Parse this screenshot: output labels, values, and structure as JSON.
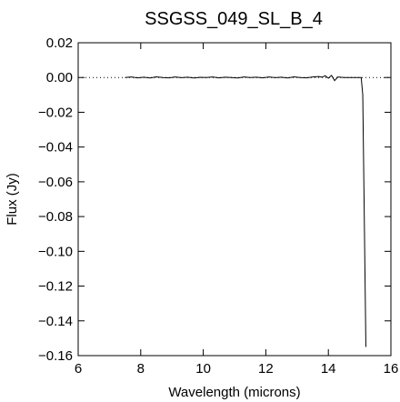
{
  "chart_data": {
    "type": "line",
    "title": "SSGSS_049_SL_B_4",
    "xlabel": "Wavelength (microns)",
    "ylabel": "Flux (Jy)",
    "xlim": [
      6,
      16
    ],
    "ylim": [
      -0.16,
      0.02
    ],
    "xticks": [
      6,
      8,
      10,
      12,
      14,
      16
    ],
    "xtick_labels": [
      "6",
      "8",
      "10",
      "12",
      "14",
      "16"
    ],
    "yticks": [
      0.02,
      0.0,
      -0.02,
      -0.04,
      -0.06,
      -0.08,
      -0.1,
      -0.12,
      -0.14,
      -0.16
    ],
    "ytick_labels": [
      "0.02",
      "0.00",
      "−0.02",
      "−0.04",
      "−0.06",
      "−0.08",
      "−0.10",
      "−0.12",
      "−0.14",
      "−0.16"
    ],
    "grid": false,
    "zero_line": "dotted",
    "series": [
      {
        "x": [
          7.5,
          7.7,
          7.9,
          8.1,
          8.3,
          8.5,
          8.7,
          8.9,
          9.1,
          9.3,
          9.5,
          9.7,
          9.9,
          10.1,
          10.3,
          10.5,
          10.7,
          10.9,
          11.1,
          11.3,
          11.5,
          11.7,
          11.9,
          12.1,
          12.3,
          12.5,
          12.7,
          12.9,
          13.1,
          13.3,
          13.5,
          13.7,
          13.8,
          13.9,
          14.0,
          14.1,
          14.2,
          14.3,
          14.5,
          14.7,
          14.9,
          15.05,
          15.1,
          15.2
        ],
        "y": [
          0.0,
          0.0003,
          -0.0002,
          0.0002,
          -0.0003,
          0.0004,
          0.0,
          -0.0002,
          0.0003,
          -0.0001,
          0.0002,
          -0.0003,
          0.0001,
          0.0,
          0.0003,
          -0.0002,
          0.0002,
          0.0,
          -0.0003,
          0.0003,
          0.0,
          0.0002,
          -0.0002,
          0.0003,
          -0.0001,
          0.0002,
          -0.0003,
          0.0004,
          0.0,
          -0.0002,
          0.0003,
          0.0006,
          0.0002,
          0.001,
          -0.0004,
          0.0012,
          -0.0018,
          0.0003,
          0.0,
          0.0,
          0.0,
          0.0,
          -0.01,
          -0.155
        ]
      }
    ]
  }
}
